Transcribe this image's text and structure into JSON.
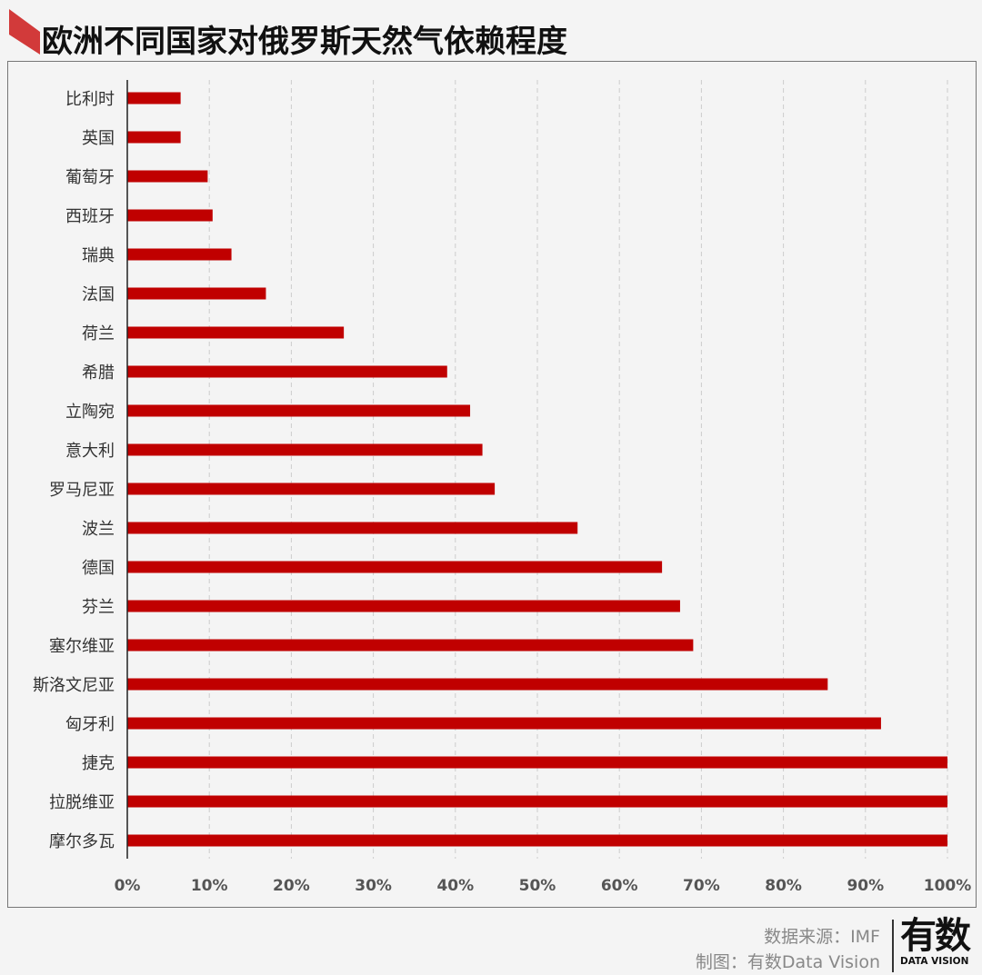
{
  "title": "欧洲不同国家对俄罗斯天然气依赖程度",
  "footer": {
    "source": "数据来源：IMF",
    "credit": "制图：有数Data Vision"
  },
  "logo": {
    "main": "有数",
    "sub": "DATA VISION"
  },
  "colors": {
    "bar": "#c00000",
    "accent": "#d23a3a",
    "grid": "#cccccc"
  },
  "chart_data": {
    "type": "bar",
    "orientation": "horizontal",
    "title": "欧洲不同国家对俄罗斯天然气依赖程度",
    "categories": [
      "比利时",
      "英国",
      "葡萄牙",
      "西班牙",
      "瑞典",
      "法国",
      "荷兰",
      "希腊",
      "立陶宛",
      "意大利",
      "罗马尼亚",
      "波兰",
      "德国",
      "芬兰",
      "塞尔维亚",
      "斯洛文尼亚",
      "匈牙利",
      "捷克",
      "拉脱维亚",
      "摩尔多瓦"
    ],
    "values": [
      6.5,
      6.5,
      9.8,
      10.4,
      12.7,
      16.9,
      26.4,
      39.0,
      41.8,
      43.3,
      44.8,
      54.9,
      65.2,
      67.4,
      69.0,
      85.4,
      91.9,
      100,
      100,
      100
    ],
    "xlim": [
      0,
      100
    ],
    "xticks": [
      "0%",
      "10%",
      "20%",
      "30%",
      "40%",
      "50%",
      "60%",
      "70%",
      "80%",
      "90%",
      "100%"
    ],
    "grid": "vertical dashed",
    "unit": "%"
  }
}
